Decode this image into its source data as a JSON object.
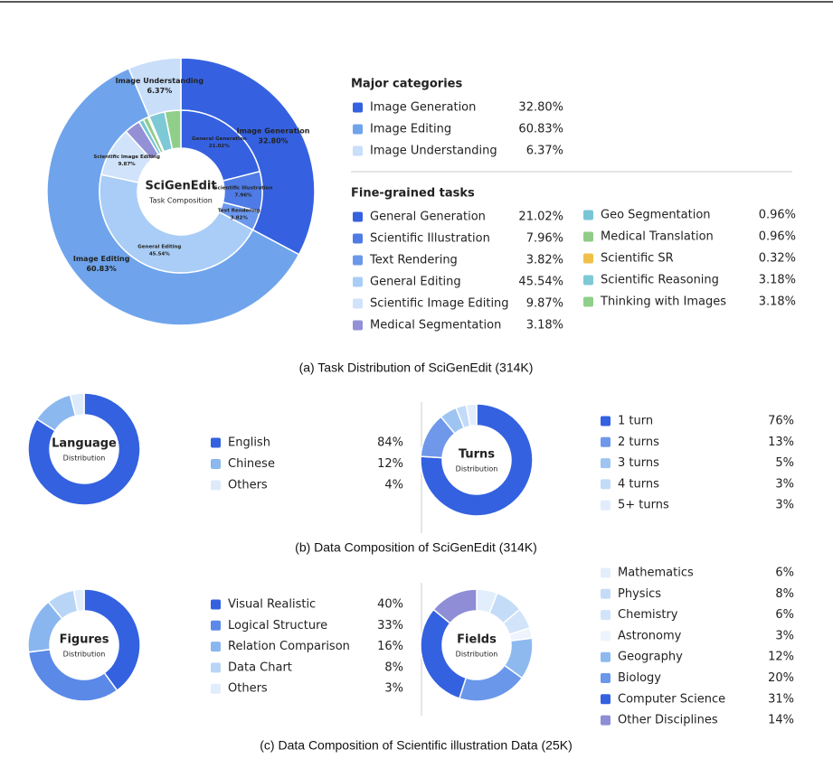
{
  "captions": [
    "(a) Task Distribution of SciGenEdit (314K)",
    "(b) Data Composition of SciGenEdit (314K)",
    "(c) Data Composition of Scientific illustration Data (25K)"
  ],
  "chart_data": [
    {
      "type": "sunburst",
      "title": "SciGenEdit",
      "subtitle": "Task Composition",
      "rings": [
        {
          "title": "Major categories",
          "categories": [
            "Image Generation",
            "Image Editing",
            "Image Understanding"
          ],
          "values": [
            32.8,
            60.83,
            6.37
          ],
          "value_labels": [
            "32.80%",
            "60.83%",
            "6.37%"
          ],
          "colors": [
            "#3561e1",
            "#6fa4ec",
            "#c8def9"
          ]
        },
        {
          "title": "Fine-grained tasks",
          "categories": [
            "General Generation",
            "Scientific Illustration",
            "Text Rendering",
            "General Editing",
            "Scientific Image Editing",
            "Medical Segmentation",
            "Geo Segmentation",
            "Medical Translation",
            "Scientific SR",
            "Scientific Reasoning",
            "Thinking with Images"
          ],
          "values": [
            21.02,
            7.96,
            3.82,
            45.54,
            9.87,
            3.18,
            0.96,
            0.96,
            0.32,
            3.18,
            3.18
          ],
          "value_labels": [
            "21.02%",
            "7.96%",
            "3.82%",
            "45.54%",
            "9.87%",
            "3.18%",
            "0.96%",
            "0.96%",
            "0.32%",
            "3.18%",
            "3.18%"
          ],
          "colors": [
            "#3561e1",
            "#4f7be6",
            "#6b98ec",
            "#a9cdf6",
            "#d0e3fa",
            "#9490d6",
            "#78c6d4",
            "#90cc87",
            "#f0c04a",
            "#7ec9d6",
            "#8fcf8a"
          ]
        }
      ]
    },
    {
      "type": "donut",
      "title": "Language",
      "subtitle": "Distribution",
      "categories": [
        "English",
        "Chinese",
        "Others"
      ],
      "values": [
        84,
        12,
        4
      ],
      "value_labels": [
        "84%",
        "12%",
        "4%"
      ],
      "colors": [
        "#3361e0",
        "#8bb8ef",
        "#ddeafc"
      ]
    },
    {
      "type": "donut",
      "title": "Turns",
      "subtitle": "Distribution",
      "categories": [
        "1 turn",
        "2 turns",
        "3 turns",
        "4 turns",
        "5+ turns"
      ],
      "values": [
        76,
        13,
        5,
        3,
        3
      ],
      "value_labels": [
        "76%",
        "13%",
        "5%",
        "3%",
        "3%"
      ],
      "colors": [
        "#3361e0",
        "#6f98ea",
        "#9ec4f2",
        "#c2dbf8",
        "#e1edfc"
      ]
    },
    {
      "type": "donut",
      "title": "Figures",
      "subtitle": "Distribution",
      "categories": [
        "Visual Realistic",
        "Logical Structure",
        "Relation Comparison",
        "Data Chart",
        "Others"
      ],
      "values": [
        40,
        33,
        16,
        8,
        3
      ],
      "value_labels": [
        "40%",
        "33%",
        "16%",
        "8%",
        "3%"
      ],
      "colors": [
        "#3361e0",
        "#5b89e8",
        "#8ab6ef",
        "#b9d5f6",
        "#e1edfc"
      ]
    },
    {
      "type": "donut",
      "title": "Fields",
      "subtitle": "Distribution",
      "categories": [
        "Mathematics",
        "Physics",
        "Chemistry",
        "Astronomy",
        "Geography",
        "Biology",
        "Computer Science",
        "Other Disciplines"
      ],
      "values": [
        6,
        8,
        6,
        3,
        12,
        20,
        31,
        14
      ],
      "value_labels": [
        "6%",
        "8%",
        "6%",
        "3%",
        "12%",
        "20%",
        "31%",
        "14%"
      ],
      "colors": [
        "#e3eefc",
        "#c5dcf8",
        "#d2e4fa",
        "#eef4fd",
        "#8eb9ef",
        "#6a97ea",
        "#3361e0",
        "#8e8dd6"
      ]
    }
  ]
}
